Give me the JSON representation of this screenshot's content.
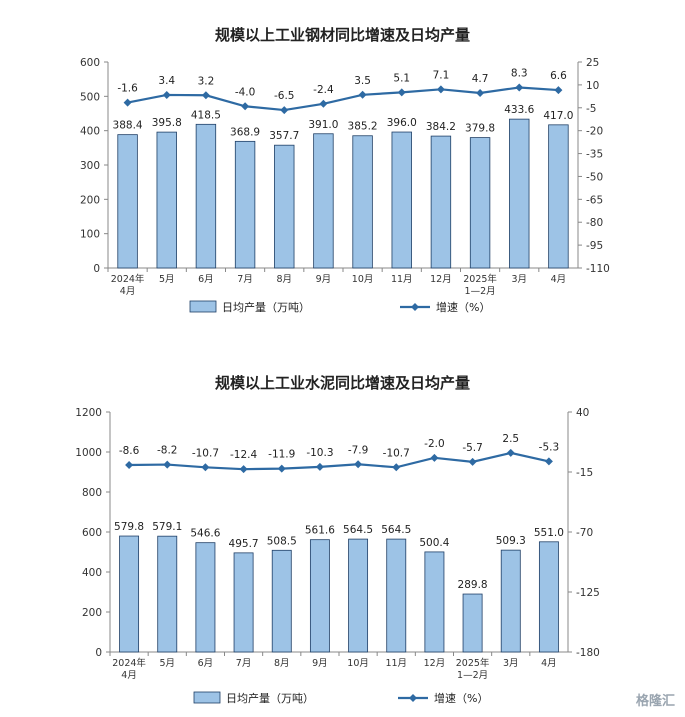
{
  "chart_data": [
    {
      "type": "bar",
      "title": "规模以上工业钢材同比增速及日均产量",
      "categories": [
        [
          "2024年",
          "4月"
        ],
        [
          "5月"
        ],
        [
          "6月"
        ],
        [
          "7月"
        ],
        [
          "8月"
        ],
        [
          "9月"
        ],
        [
          "10月"
        ],
        [
          "11月"
        ],
        [
          "12月"
        ],
        [
          "2025年",
          "1—2月"
        ],
        [
          "3月"
        ],
        [
          "4月"
        ]
      ],
      "left_axis": {
        "min": 0,
        "max": 600,
        "ticks": [
          0,
          100,
          200,
          300,
          400,
          500,
          600
        ]
      },
      "right_axis": {
        "min": -110,
        "max": 25,
        "ticks": [
          25,
          10,
          -5,
          -20,
          -35,
          -50,
          -65,
          -80,
          -95,
          -110
        ]
      },
      "series": [
        {
          "name": "日均产量（万吨）",
          "type": "bar",
          "axis": "left",
          "color": "#9dc3e6",
          "values": [
            388.4,
            395.8,
            418.5,
            368.9,
            357.7,
            391.0,
            385.2,
            396.0,
            384.2,
            379.8,
            433.6,
            417.0
          ],
          "labels": [
            "388.4",
            "395.8",
            "418.5",
            "368.9",
            "357.7",
            "391.0",
            "385.2",
            "396.0",
            "384.2",
            "379.8",
            "433.6",
            "417.0"
          ]
        },
        {
          "name": "增速（%）",
          "type": "line",
          "axis": "right",
          "color": "#2e6aa3",
          "values": [
            -1.6,
            3.4,
            3.2,
            -4.0,
            -6.5,
            -2.4,
            3.5,
            5.1,
            7.1,
            4.7,
            8.3,
            6.6
          ],
          "labels": [
            "-1.6",
            "3.4",
            "3.2",
            "-4.0",
            "-6.5",
            "-2.4",
            "3.5",
            "5.1",
            "7.1",
            "4.7",
            "8.3",
            "6.6"
          ]
        }
      ],
      "legend_position": "bottom"
    },
    {
      "type": "bar",
      "title": "规模以上工业水泥同比增速及日均产量",
      "categories": [
        [
          "2024年",
          "4月"
        ],
        [
          "5月"
        ],
        [
          "6月"
        ],
        [
          "7月"
        ],
        [
          "8月"
        ],
        [
          "9月"
        ],
        [
          "10月"
        ],
        [
          "11月"
        ],
        [
          "12月"
        ],
        [
          "2025年",
          "1—2月"
        ],
        [
          "3月"
        ],
        [
          "4月"
        ]
      ],
      "left_axis": {
        "min": 0,
        "max": 1200,
        "ticks": [
          0,
          200,
          400,
          600,
          800,
          1000,
          1200
        ]
      },
      "right_axis": {
        "min": -180,
        "max": 40,
        "ticks": [
          40,
          -15,
          -70,
          -125,
          -180
        ]
      },
      "series": [
        {
          "name": "日均产量（万吨）",
          "type": "bar",
          "axis": "left",
          "color": "#9dc3e6",
          "values": [
            579.8,
            579.1,
            546.6,
            495.7,
            508.5,
            561.6,
            564.5,
            564.5,
            500.4,
            289.8,
            509.3,
            551.0
          ],
          "labels": [
            "579.8",
            "579.1",
            "546.6",
            "495.7",
            "508.5",
            "561.6",
            "564.5",
            "564.5",
            "500.4",
            "289.8",
            "509.3",
            "551.0"
          ]
        },
        {
          "name": "增速（%）",
          "type": "line",
          "axis": "right",
          "color": "#2e6aa3",
          "values": [
            -8.6,
            -8.2,
            -10.7,
            -12.4,
            -11.9,
            -10.3,
            -7.9,
            -10.7,
            -2.0,
            -5.7,
            2.5,
            -5.3
          ],
          "labels": [
            "-8.6",
            "-8.2",
            "-10.7",
            "-12.4",
            "-11.9",
            "-10.3",
            "-7.9",
            "-10.7",
            "-2.0",
            "-5.7",
            "2.5",
            "-5.3"
          ]
        }
      ],
      "legend_position": "bottom"
    }
  ],
  "watermark": "格隆汇"
}
